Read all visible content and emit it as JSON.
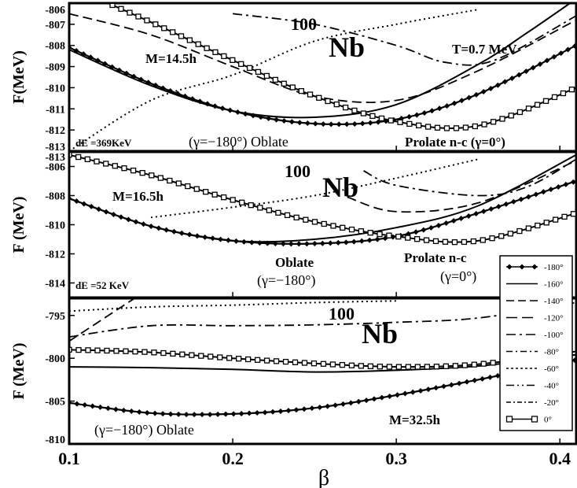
{
  "chart_data": {
    "type": "line",
    "xlabel": "β",
    "xlim": [
      0.1,
      0.41
    ],
    "xticks": [
      "0.1",
      "0.2",
      "0.3",
      "0.4"
    ],
    "legend": {
      "placement": "bottom-right",
      "entries": [
        "-180°",
        "-160°",
        "-140°",
        "-120°",
        "-100°",
        "-80°",
        "-60°",
        "-40°",
        "-20°",
        "0°"
      ]
    },
    "panels": [
      {
        "ylabel": "F(MeV)",
        "ylim": [
          -813,
          -806
        ],
        "yticks": [
          "-806",
          "-807",
          "-808",
          "-809",
          "-810",
          "-811",
          "-812",
          "-813"
        ],
        "nucleus_mass": "100",
        "nucleus_symbol": "Nb",
        "labels": {
          "spin": "M=14.5h",
          "temp": "T=0.7 MeV",
          "de": "dE =369KeV",
          "oblate_gamma": "(γ=−180°) Oblate",
          "prolate": "Prolate n-c (γ=0°)"
        },
        "series": [
          {
            "name": "-180°",
            "style": "diamond",
            "x": [
              0.1,
              0.15,
              0.2,
              0.25,
              0.3,
              0.35,
              0.41
            ],
            "y": [
              -808.1,
              -809.8,
              -811.1,
              -811.7,
              -811.5,
              -810.3,
              -808.0
            ]
          },
          {
            "name": "-160°",
            "style": "solid",
            "x": [
              0.1,
              0.15,
              0.2,
              0.25,
              0.3,
              0.35,
              0.38,
              0.41
            ],
            "y": [
              -808.2,
              -809.9,
              -811.1,
              -811.4,
              -810.8,
              -808.9,
              -807.4,
              -805.8
            ]
          },
          {
            "name": "-120°",
            "style": "dashed",
            "x": [
              0.1,
              0.15,
              0.2,
              0.25,
              0.3,
              0.35,
              0.41
            ],
            "y": [
              -806.5,
              -807.5,
              -809.0,
              -810.4,
              -810.6,
              -809.2,
              -806.8
            ]
          },
          {
            "name": "-100°",
            "style": "dashdot",
            "x": [
              0.2,
              0.25,
              0.3,
              0.33,
              0.36,
              0.41
            ],
            "y": [
              -806.5,
              -807.0,
              -808.0,
              -808.8,
              -808.7,
              -806.6
            ]
          },
          {
            "name": "-60°",
            "style": "dotted",
            "x": [
              0.1,
              0.15,
              0.2,
              0.25,
              0.3,
              0.35
            ],
            "y": [
              -813.0,
              -810.6,
              -809.4,
              -807.8,
              -807.0,
              -806.3
            ]
          },
          {
            "name": "0°",
            "style": "square",
            "x": [
              0.1,
              0.15,
              0.2,
              0.25,
              0.3,
              0.35,
              0.41
            ],
            "y": [
              -805.2,
              -806.9,
              -808.7,
              -810.4,
              -811.6,
              -811.8,
              -810.0
            ]
          }
        ]
      },
      {
        "ylabel": "F (MeV)",
        "ylim": [
          -815,
          -805
        ],
        "yticks": [
          "-806",
          "-808",
          "-810",
          "-812",
          "-814"
        ],
        "top_tick": "-813",
        "nucleus_mass": "100",
        "nucleus_symbol": "Nb",
        "labels": {
          "spin": "M=16.5h",
          "de": "dE =52 KeV",
          "oblate": "Oblate",
          "oblate_gamma": "(γ=−180°)",
          "prolate": "Prolate n-c",
          "prolate_gamma": "(γ=0°)"
        },
        "series": [
          {
            "name": "-180°",
            "style": "diamond",
            "x": [
              0.1,
              0.15,
              0.2,
              0.25,
              0.3,
              0.35,
              0.41
            ],
            "y": [
              -808.2,
              -810.1,
              -811.1,
              -811.3,
              -810.8,
              -809.2,
              -807.0
            ]
          },
          {
            "name": "-160°",
            "style": "solid",
            "x": [
              0.1,
              0.15,
              0.2,
              0.25,
              0.3,
              0.35,
              0.41
            ],
            "y": [
              -808.2,
              -810.1,
              -811.1,
              -811.0,
              -810.2,
              -808.7,
              -805.2
            ]
          },
          {
            "name": "-120°",
            "style": "dashed",
            "x": [
              0.27,
              0.3,
              0.35,
              0.41
            ],
            "y": [
              -808.1,
              -809.1,
              -808.5,
              -805.6
            ]
          },
          {
            "name": "-100°",
            "style": "dashdot",
            "x": [
              0.28,
              0.3,
              0.35,
              0.38,
              0.41
            ],
            "y": [
              -806.3,
              -807.3,
              -808.0,
              -807.4,
              -805.5
            ]
          },
          {
            "name": "-60°",
            "style": "dotted",
            "x": [
              0.15,
              0.2,
              0.25,
              0.3,
              0.35
            ],
            "y": [
              -809.5,
              -808.8,
              -808.0,
              -806.8,
              -805.5
            ]
          },
          {
            "name": "0°",
            "style": "square",
            "x": [
              0.1,
              0.15,
              0.2,
              0.25,
              0.3,
              0.35,
              0.41
            ],
            "y": [
              -805.2,
              -806.6,
              -808.3,
              -809.8,
              -810.8,
              -811.1,
              -809.2
            ]
          }
        ]
      },
      {
        "ylabel": "F (MeV)",
        "ylim": [
          -810,
          -793
        ],
        "yticks": [
          "-795",
          "-800",
          "-805",
          "-810"
        ],
        "nucleus_mass": "100",
        "nucleus_symbol": "Nb",
        "labels": {
          "spin": "M=32.5h",
          "oblate_gamma": "(γ=−180°) Oblate"
        },
        "series": [
          {
            "name": "-180°",
            "style": "diamond",
            "x": [
              0.1,
              0.15,
              0.2,
              0.25,
              0.3,
              0.35,
              0.41
            ],
            "y": [
              -805.2,
              -806.4,
              -806.5,
              -805.8,
              -804.3,
              -802.5,
              -800.2
            ]
          },
          {
            "name": "-160°",
            "style": "solid",
            "x": [
              0.1,
              0.15,
              0.2,
              0.25,
              0.3,
              0.35,
              0.41
            ],
            "y": [
              -801.0,
              -801.1,
              -801.3,
              -801.6,
              -801.4,
              -800.9,
              -799.6
            ]
          },
          {
            "name": "-120°",
            "style": "dashed",
            "x": [
              0.1,
              0.12,
              0.14
            ],
            "y": [
              -798.0,
              -795.5,
              -793.0
            ]
          },
          {
            "name": "-100°",
            "style": "dashdot",
            "x": [
              0.1,
              0.15,
              0.2,
              0.25,
              0.3,
              0.35,
              0.41
            ],
            "y": [
              -797.5,
              -796.2,
              -796.2,
              -796.1,
              -795.8,
              -795.3,
              -793.5
            ]
          },
          {
            "name": "-60°",
            "style": "dotted",
            "x": [
              0.1,
              0.15,
              0.2,
              0.25,
              0.3
            ],
            "y": [
              -794.5,
              -794.0,
              -793.8,
              -793.5,
              -793.3
            ]
          },
          {
            "name": "0°",
            "style": "square",
            "x": [
              0.1,
              0.15,
              0.2,
              0.25,
              0.3,
              0.35,
              0.41
            ],
            "y": [
              -799.0,
              -799.3,
              -800.0,
              -800.6,
              -801.0,
              -800.7,
              -799.2
            ]
          }
        ]
      }
    ]
  }
}
